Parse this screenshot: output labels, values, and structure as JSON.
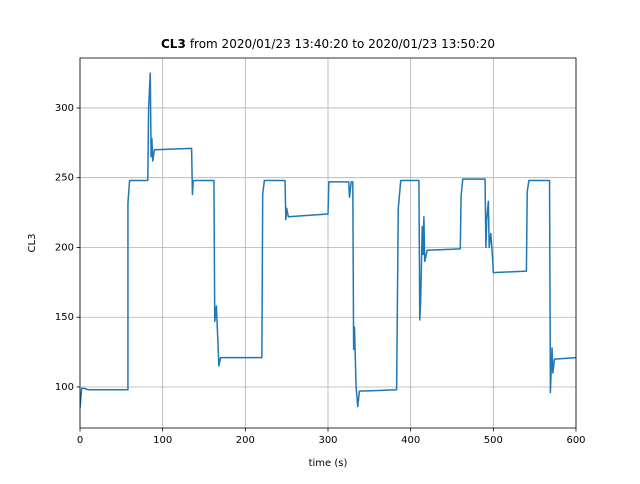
{
  "chart_data": {
    "type": "line",
    "title_bold": "CL3",
    "title": "from 2020/01/23 13:40:20 to 2020/01/23 13:50:20",
    "xlabel": "time (s)",
    "ylabel": "CL3",
    "xlim": [
      0,
      600
    ],
    "xticks": [
      0,
      100,
      200,
      300,
      400,
      500,
      600
    ],
    "ylim": [
      70.6,
      335.8
    ],
    "yticks": [
      100,
      150,
      200,
      250,
      300
    ],
    "grid": true,
    "series": [
      {
        "color": "#1f77b4",
        "x": [
          0,
          2,
          5,
          10,
          58,
          58,
          60,
          82,
          83,
          85,
          86,
          87,
          88,
          90,
          135,
          136,
          137,
          162,
          163,
          165,
          167,
          168,
          170,
          220,
          221,
          223,
          248,
          249,
          250,
          252,
          300,
          301,
          325,
          326,
          328,
          330,
          331,
          332,
          334,
          336,
          338,
          383,
          385,
          388,
          410,
          411,
          412,
          414,
          415,
          416,
          417,
          420,
          460,
          461,
          463,
          490,
          491,
          492,
          494,
          495,
          497,
          499,
          500,
          540,
          541,
          543,
          568,
          569,
          571,
          572,
          574,
          600
        ],
        "values": [
          85,
          99,
          99,
          98,
          98,
          232,
          248,
          248,
          300,
          325,
          265,
          278,
          262,
          270,
          271,
          238,
          248,
          248,
          147,
          158,
          130,
          115,
          121,
          121,
          238,
          248,
          248,
          220,
          228,
          222,
          224,
          247,
          247,
          236,
          247,
          247,
          127,
          143,
          100,
          86,
          97,
          98,
          228,
          248,
          248,
          148,
          160,
          215,
          195,
          222,
          190,
          198,
          199,
          237,
          249,
          249,
          200,
          220,
          233,
          200,
          210,
          193,
          182,
          183,
          240,
          248,
          248,
          96,
          128,
          110,
          120,
          121
        ]
      }
    ]
  }
}
